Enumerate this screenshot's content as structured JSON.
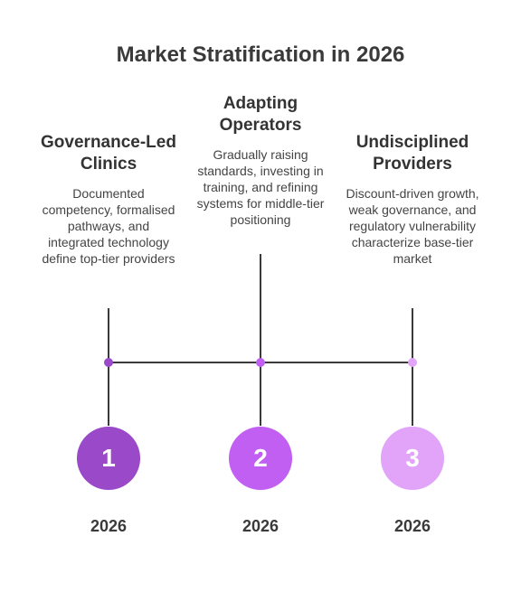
{
  "title": "Market Stratification in 2026",
  "colors": {
    "step1": "#9a49c9",
    "step2": "#c05ff2",
    "step3": "#e1a4f9",
    "line": "#3a3a3a"
  },
  "steps": [
    {
      "number": "1",
      "heading": "Governance-Led Clinics",
      "description": "Documented competency, formalised pathways, and integrated technology define top-tier providers",
      "year": "2026"
    },
    {
      "number": "2",
      "heading": "Adapting Operators",
      "description": "Gradually raising standards, investing in training, and refining systems for middle-tier positioning",
      "year": "2026"
    },
    {
      "number": "3",
      "heading": "Undisciplined Providers",
      "description": "Discount-driven growth, weak governance, and regulatory vulnerability characterize base-tier market",
      "year": "2026"
    }
  ]
}
